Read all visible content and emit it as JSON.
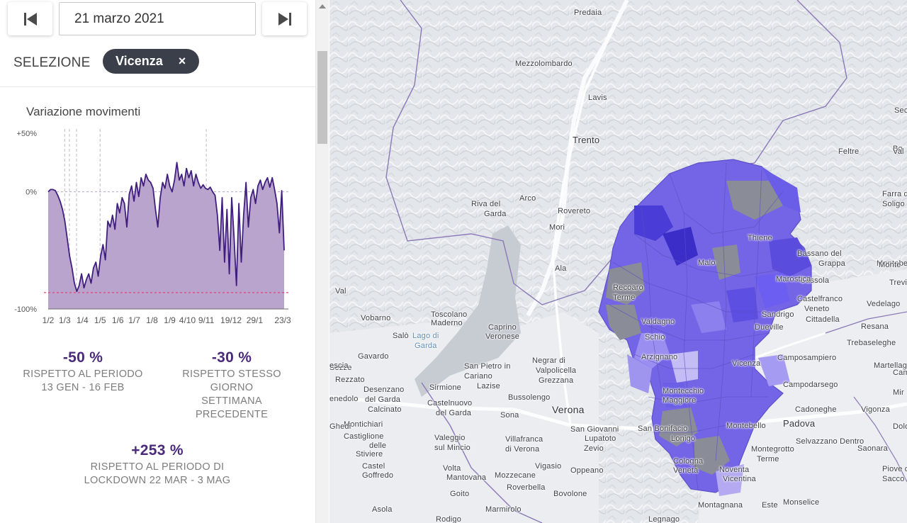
{
  "toolbar": {
    "prev_icon": "skip-back-icon",
    "next_icon": "skip-forward-icon",
    "date_value": "21 marzo 2021"
  },
  "selection": {
    "label": "SELEZIONE",
    "chip_label": "Vicenza",
    "chip_close": "×"
  },
  "chart_data": {
    "type": "area",
    "title": "Variazione movimenti",
    "y_ticks": [
      "+50%",
      "0%",
      "-100%"
    ],
    "ylim": [
      -100,
      50
    ],
    "x_ticks": [
      "1/2",
      "1/3",
      "1/4",
      "1/5",
      "1/6",
      "1/7",
      "1/8",
      "1/9",
      "4/10",
      "9/11",
      "19/12",
      "29/1",
      "23/3"
    ],
    "reference_line_value": -86,
    "reference_line_color": "#e0457b",
    "fill_color": "#b9a4ce",
    "line_color": "#3f1e7e",
    "series": [
      {
        "name": "Variazione movimenti Vicenza",
        "values": [
          0,
          2,
          2,
          1,
          -3,
          -8,
          -15,
          -25,
          -40,
          -55,
          -65,
          -78,
          -85,
          -80,
          -70,
          -82,
          -75,
          -70,
          -78,
          -65,
          -60,
          -72,
          -55,
          -45,
          -58,
          -25,
          -30,
          -20,
          -32,
          -10,
          -18,
          -5,
          -10,
          -30,
          -2,
          5,
          -8,
          8,
          -4,
          12,
          5,
          15,
          10,
          8,
          3,
          -15,
          -30,
          -5,
          8,
          3,
          15,
          5,
          0,
          10,
          25,
          10,
          15,
          5,
          20,
          12,
          18,
          5,
          15,
          8,
          3,
          6,
          3,
          2,
          4,
          0,
          -3,
          -20,
          -50,
          -5,
          -60,
          -15,
          -70,
          -5,
          -40,
          -80,
          -10,
          -60,
          -20,
          8,
          -30,
          -5,
          2,
          -10,
          5,
          10,
          2,
          8,
          12,
          4,
          12,
          2,
          -10,
          -35,
          1,
          -50
        ]
      }
    ],
    "event_markers": [
      "23/2",
      "1/3",
      "9/3",
      "1/5",
      "4/10",
      "9/11"
    ]
  },
  "stats": [
    {
      "value": "-50 %",
      "caption_lines": [
        "RISPETTO AL PERIODO",
        "13 GEN - 16 FEB"
      ]
    },
    {
      "value": "-30 %",
      "caption_lines": [
        "RISPETTO STESSO",
        "GIORNO",
        "SETTIMANA",
        "PRECEDENTE"
      ]
    },
    {
      "value": "+253 %",
      "caption_lines": [
        "RISPETTO AL PERIODO DI",
        "LOCKDOWN 22 MAR - 3 MAG"
      ]
    }
  ],
  "map": {
    "places": [
      {
        "name": "Predaia",
        "size": "small"
      },
      {
        "name": "Mezzolombardo",
        "size": "small"
      },
      {
        "name": "Lavis",
        "size": "small"
      },
      {
        "name": "Trento",
        "size": "mid"
      },
      {
        "name": "Feltre",
        "size": "small"
      },
      {
        "name": "Riva del",
        "size": "small"
      },
      {
        "name": "Garda",
        "size": "small"
      },
      {
        "name": "Arco",
        "size": "small"
      },
      {
        "name": "Rovereto",
        "size": "small"
      },
      {
        "name": "Mori",
        "size": "small"
      },
      {
        "name": "Ala",
        "size": "small"
      },
      {
        "name": "Farra di",
        "size": "small"
      },
      {
        "name": "Soligo",
        "size": "small"
      },
      {
        "name": "Bassano del",
        "size": "small"
      },
      {
        "name": "Grappa",
        "size": "small"
      },
      {
        "name": "Cassola",
        "size": "small"
      },
      {
        "name": "Castelfranco",
        "size": "small"
      },
      {
        "name": "Veneto",
        "size": "small"
      },
      {
        "name": "Cittadella",
        "size": "small"
      },
      {
        "name": "Vedelago",
        "size": "small"
      },
      {
        "name": "Montebelluna",
        "size": "small"
      },
      {
        "name": "Val",
        "size": "small"
      },
      {
        "name": "Vobarno",
        "size": "small"
      },
      {
        "name": "Toscolano",
        "size": "small"
      },
      {
        "name": "Maderno",
        "size": "small"
      },
      {
        "name": "Lago di",
        "size": "lake"
      },
      {
        "name": "Garda",
        "size": "lake"
      },
      {
        "name": "Salò",
        "size": "small"
      },
      {
        "name": "Caprino",
        "size": "small"
      },
      {
        "name": "Veronese",
        "size": "small"
      },
      {
        "name": "Gavardo",
        "size": "small"
      },
      {
        "name": "Negrar di",
        "size": "small"
      },
      {
        "name": "Valpolicella",
        "size": "small"
      },
      {
        "name": "Grezzana",
        "size": "small"
      },
      {
        "name": "San Pietro in",
        "size": "small"
      },
      {
        "name": "Cariano",
        "size": "small"
      },
      {
        "name": "Lazise",
        "size": "small"
      },
      {
        "name": "Rezzato",
        "size": "small"
      },
      {
        "name": "Desenzano",
        "size": "small"
      },
      {
        "name": "del Garda",
        "size": "small"
      },
      {
        "name": "Sirmione",
        "size": "small"
      },
      {
        "name": "Bussolengo",
        "size": "small"
      },
      {
        "name": "Calcinato",
        "size": "small"
      },
      {
        "name": "Castelnuovo",
        "size": "small"
      },
      {
        "name": "del Garda",
        "size": "small"
      },
      {
        "name": "Sona",
        "size": "small"
      },
      {
        "name": "Verona",
        "size": "big"
      },
      {
        "name": "Camposampiero",
        "size": "small"
      },
      {
        "name": "Campodarsego",
        "size": "small"
      },
      {
        "name": "Cadoneghe",
        "size": "small"
      },
      {
        "name": "Vigonza",
        "size": "small"
      },
      {
        "name": "Padova",
        "size": "mid"
      },
      {
        "name": "Resana",
        "size": "small"
      },
      {
        "name": "Trebaseleghe",
        "size": "small"
      },
      {
        "name": "Martellago",
        "size": "small"
      },
      {
        "name": "Montichiari",
        "size": "small"
      },
      {
        "name": "Castiglione",
        "size": "small"
      },
      {
        "name": "delle",
        "size": "small"
      },
      {
        "name": "Stiviere",
        "size": "small"
      },
      {
        "name": "Valeggio",
        "size": "small"
      },
      {
        "name": "sul Mincio",
        "size": "small"
      },
      {
        "name": "Villafranca",
        "size": "small"
      },
      {
        "name": "di Verona",
        "size": "small"
      },
      {
        "name": "San Giovanni",
        "size": "small"
      },
      {
        "name": "Lupatoto",
        "size": "small"
      },
      {
        "name": "Zevio",
        "size": "small"
      },
      {
        "name": "San Bonifacio",
        "size": "small"
      },
      {
        "name": "Lonigo",
        "size": "small"
      },
      {
        "name": "Montegrotto",
        "size": "small"
      },
      {
        "name": "Terme",
        "size": "small"
      },
      {
        "name": "Selvazzano Dentro",
        "size": "small"
      },
      {
        "name": "Saonara",
        "size": "small"
      },
      {
        "name": "Castel",
        "size": "small"
      },
      {
        "name": "Goffredo",
        "size": "small"
      },
      {
        "name": "Volta",
        "size": "small"
      },
      {
        "name": "Mantovana",
        "size": "small"
      },
      {
        "name": "Mozzecane",
        "size": "small"
      },
      {
        "name": "Vigasio",
        "size": "small"
      },
      {
        "name": "Oppeano",
        "size": "small"
      },
      {
        "name": "Cologna",
        "size": "small"
      },
      {
        "name": "Veneta",
        "size": "small"
      },
      {
        "name": "Noventa",
        "size": "small"
      },
      {
        "name": "Vicentina",
        "size": "small"
      },
      {
        "name": "Piove di",
        "size": "small"
      },
      {
        "name": "Sacco",
        "size": "small"
      },
      {
        "name": "Ghedi",
        "size": "small"
      },
      {
        "name": "Goito",
        "size": "small"
      },
      {
        "name": "Roverbella",
        "size": "small"
      },
      {
        "name": "Bovolone",
        "size": "small"
      },
      {
        "name": "Montagnana",
        "size": "small"
      },
      {
        "name": "Este",
        "size": "small"
      },
      {
        "name": "Monselice",
        "size": "small"
      },
      {
        "name": "Asola",
        "size": "small"
      },
      {
        "name": "Marmirolo",
        "size": "small"
      },
      {
        "name": "Rodigo",
        "size": "small"
      },
      {
        "name": "Legnago",
        "size": "small"
      },
      {
        "name": "Sezze",
        "size": "small"
      },
      {
        "name": "Vicenza",
        "size": "small"
      },
      {
        "name": "Valdagno",
        "size": "small"
      },
      {
        "name": "Schio",
        "size": "small"
      },
      {
        "name": "Arzignano",
        "size": "small"
      },
      {
        "name": "Montecchio",
        "size": "small"
      },
      {
        "name": "Maggiore",
        "size": "small"
      },
      {
        "name": "Thiene",
        "size": "small"
      },
      {
        "name": "Marostica",
        "size": "small"
      },
      {
        "name": "Sandrigo",
        "size": "small"
      },
      {
        "name": "Dueville",
        "size": "small"
      },
      {
        "name": "Malo",
        "size": "small"
      },
      {
        "name": "Recoaro",
        "size": "small"
      },
      {
        "name": "Terme",
        "size": "small"
      },
      {
        "name": "Montebello",
        "size": "small"
      },
      {
        "name": "escia",
        "size": "small"
      },
      {
        "name": "enedolo",
        "size": "small"
      },
      {
        "name": "Monte",
        "size": "small"
      },
      {
        "name": "Trevi",
        "size": "small"
      },
      {
        "name": "Sec",
        "size": "small"
      },
      {
        "name": "Bo",
        "size": "small"
      },
      {
        "name": "Val",
        "size": "small"
      },
      {
        "name": "Cam",
        "size": "small"
      },
      {
        "name": "Dolo",
        "size": "small"
      },
      {
        "name": "Mir",
        "size": "small"
      }
    ]
  }
}
